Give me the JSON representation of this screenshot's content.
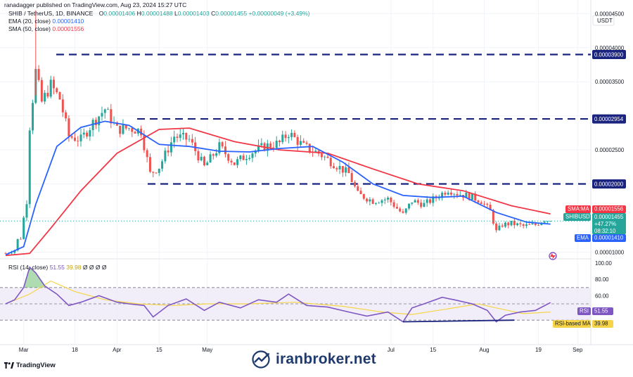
{
  "header": {
    "published": "ranadagger published on TradingView.com, Aug 23, 2024 15:27 UTC",
    "symbol": "SHIB / TetherUS, 1D, BINANCE",
    "ohlc": {
      "o_label": "O",
      "o": "0.00001406",
      "h_label": "H",
      "h": "0.00001488",
      "l_label": "L",
      "l": "0.00001403",
      "c_label": "C",
      "c": "0.00001455",
      "change": "+0.00000049 (+3.49%)"
    },
    "ema": {
      "label": "EMA (20, close)",
      "value": "0.00001410"
    },
    "sma": {
      "label": "SMA (50, close)",
      "value": "0.00001556"
    }
  },
  "currency": "USDT",
  "colors": {
    "up": "#26a69a",
    "down": "#ef5350",
    "ema": "#2962ff",
    "sma": "#f23645",
    "rsi": "#7e57c2",
    "rsi_ma": "#f5d547",
    "level_line": "#1a237e",
    "divergence": "#1a237e",
    "watermark": "#1f3b6e"
  },
  "price_axis": {
    "ticks": [
      "0.00004500",
      "0.00004000",
      "0.00003500",
      "0.00002500",
      "0.00001000"
    ]
  },
  "level_labels": [
    "0.00003900",
    "0.00002954",
    "0.00002000"
  ],
  "price_badges": {
    "sma": {
      "name": "SMA:MA",
      "value": "0.00001556"
    },
    "symbol": {
      "name": "SHIBUSDT",
      "value": "0.00001455",
      "change": "+47.27%",
      "countdown": "08:32:10"
    },
    "ema": {
      "name": "EMA",
      "value": "0.00001410"
    }
  },
  "rsi": {
    "label": "RSI (14, close)",
    "value_header": "51.55",
    "ma_header": "39.98",
    "extra": "Ø Ø Ø Ø",
    "axis_ticks": [
      "100.00",
      "80.00",
      "60.00"
    ],
    "badge_rsi": {
      "name": "RSI",
      "value": "51.55"
    },
    "badge_ma": {
      "name": "RSI-based MA",
      "value": "39.98"
    }
  },
  "time_axis": [
    "Mar",
    "18",
    "Apr",
    "15",
    "May",
    "Jul",
    "15",
    "Aug",
    "19",
    "Sep"
  ],
  "brand": {
    "tradingview": "TradingView",
    "watermark": "iranbroker.net"
  },
  "chart_data": {
    "type": "candlestick",
    "title": "SHIB / TetherUS, 1D, BINANCE",
    "y_unit": "USDT",
    "ylim": [
      9e-06,
      4.7e-05
    ],
    "date_range": [
      "2024-02-24",
      "2024-08-23"
    ],
    "levels": [
      3.9e-05,
      2.954e-05,
      2e-05
    ],
    "close_path": [
      [
        "2024-02-24",
        9.8e-06
      ],
      [
        "2024-02-27",
        1.03e-05
      ],
      [
        "2024-02-28",
        1.18e-05
      ],
      [
        "2024-02-29",
        1.21e-05
      ],
      [
        "2024-03-01",
        1.5e-05
      ],
      [
        "2024-03-02",
        1.75e-05
      ],
      [
        "2024-03-03",
        2.85e-05
      ],
      [
        "2024-03-05",
        3.65e-05
      ],
      [
        "2024-03-07",
        3.2e-05
      ],
      [
        "2024-03-10",
        3.45e-05
      ],
      [
        "2024-03-13",
        3.25e-05
      ],
      [
        "2024-03-16",
        2.7e-05
      ],
      [
        "2024-03-20",
        2.65e-05
      ],
      [
        "2024-03-24",
        2.9e-05
      ],
      [
        "2024-03-28",
        3.1e-05
      ],
      [
        "2024-04-01",
        2.8e-05
      ],
      [
        "2024-04-05",
        2.82e-05
      ],
      [
        "2024-04-09",
        2.78e-05
      ],
      [
        "2024-04-12",
        2.15e-05
      ],
      [
        "2024-04-15",
        2.25e-05
      ],
      [
        "2024-04-20",
        2.7e-05
      ],
      [
        "2024-04-25",
        2.65e-05
      ],
      [
        "2024-04-30",
        2.25e-05
      ],
      [
        "2024-05-05",
        2.55e-05
      ],
      [
        "2024-05-10",
        2.3e-05
      ],
      [
        "2024-05-15",
        2.45e-05
      ],
      [
        "2024-05-20",
        2.55e-05
      ],
      [
        "2024-05-25",
        2.6e-05
      ],
      [
        "2024-05-28",
        2.75e-05
      ],
      [
        "2024-06-02",
        2.55e-05
      ],
      [
        "2024-06-07",
        2.45e-05
      ],
      [
        "2024-06-12",
        2.3e-05
      ],
      [
        "2024-06-17",
        2.15e-05
      ],
      [
        "2024-06-20",
        1.85e-05
      ],
      [
        "2024-06-25",
        1.75e-05
      ],
      [
        "2024-06-30",
        1.78e-05
      ],
      [
        "2024-07-05",
        1.55e-05
      ],
      [
        "2024-07-08",
        1.75e-05
      ],
      [
        "2024-07-12",
        1.7e-05
      ],
      [
        "2024-07-16",
        1.8e-05
      ],
      [
        "2024-07-20",
        1.92e-05
      ],
      [
        "2024-07-23",
        1.86e-05
      ],
      [
        "2024-07-27",
        1.82e-05
      ],
      [
        "2024-07-31",
        1.75e-05
      ],
      [
        "2024-08-03",
        1.6e-05
      ],
      [
        "2024-08-05",
        1.3e-05
      ],
      [
        "2024-08-07",
        1.4e-05
      ],
      [
        "2024-08-10",
        1.42e-05
      ],
      [
        "2024-08-14",
        1.38e-05
      ],
      [
        "2024-08-18",
        1.4e-05
      ],
      [
        "2024-08-21",
        1.48e-05
      ],
      [
        "2024-08-23",
        1.455e-05
      ]
    ],
    "ema20": [
      [
        "2024-02-24",
        9.6e-06
      ],
      [
        "2024-03-01",
        1.08e-05
      ],
      [
        "2024-03-05",
        1.7e-05
      ],
      [
        "2024-03-12",
        2.55e-05
      ],
      [
        "2024-03-20",
        2.83e-05
      ],
      [
        "2024-03-28",
        2.92e-05
      ],
      [
        "2024-04-05",
        2.86e-05
      ],
      [
        "2024-04-15",
        2.58e-05
      ],
      [
        "2024-04-25",
        2.55e-05
      ],
      [
        "2024-05-05",
        2.48e-05
      ],
      [
        "2024-05-15",
        2.47e-05
      ],
      [
        "2024-05-25",
        2.52e-05
      ],
      [
        "2024-06-05",
        2.55e-05
      ],
      [
        "2024-06-15",
        2.32e-05
      ],
      [
        "2024-06-25",
        2e-05
      ],
      [
        "2024-07-05",
        1.83e-05
      ],
      [
        "2024-07-15",
        1.8e-05
      ],
      [
        "2024-07-25",
        1.82e-05
      ],
      [
        "2024-08-05",
        1.58e-05
      ],
      [
        "2024-08-15",
        1.44e-05
      ],
      [
        "2024-08-23",
        1.41e-05
      ]
    ],
    "sma50": [
      [
        "2024-02-24",
        9.5e-06
      ],
      [
        "2024-03-03",
        9.8e-06
      ],
      [
        "2024-03-10",
        1.35e-05
      ],
      [
        "2024-03-20",
        1.9e-05
      ],
      [
        "2024-04-01",
        2.45e-05
      ],
      [
        "2024-04-15",
        2.8e-05
      ],
      [
        "2024-04-25",
        2.82e-05
      ],
      [
        "2024-05-10",
        2.62e-05
      ],
      [
        "2024-05-25",
        2.5e-05
      ],
      [
        "2024-06-10",
        2.45e-05
      ],
      [
        "2024-06-25",
        2.22e-05
      ],
      [
        "2024-07-10",
        2e-05
      ],
      [
        "2024-07-25",
        1.9e-05
      ],
      [
        "2024-08-10",
        1.68e-05
      ],
      [
        "2024-08-23",
        1.56e-05
      ]
    ],
    "rsi_range": [
      0,
      100
    ],
    "rsi_band": [
      30,
      70
    ],
    "rsi_values": [
      [
        "2024-02-24",
        50
      ],
      [
        "2024-02-27",
        55
      ],
      [
        "2024-03-01",
        70
      ],
      [
        "2024-03-03",
        95
      ],
      [
        "2024-03-05",
        88
      ],
      [
        "2024-03-08",
        72
      ],
      [
        "2024-03-12",
        62
      ],
      [
        "2024-03-16",
        48
      ],
      [
        "2024-03-20",
        52
      ],
      [
        "2024-03-26",
        60
      ],
      [
        "2024-04-01",
        52
      ],
      [
        "2024-04-05",
        50
      ],
      [
        "2024-04-10",
        48
      ],
      [
        "2024-04-13",
        34
      ],
      [
        "2024-04-18",
        48
      ],
      [
        "2024-04-24",
        56
      ],
      [
        "2024-04-30",
        42
      ],
      [
        "2024-05-05",
        52
      ],
      [
        "2024-05-12",
        45
      ],
      [
        "2024-05-18",
        55
      ],
      [
        "2024-05-24",
        52
      ],
      [
        "2024-05-28",
        62
      ],
      [
        "2024-06-03",
        48
      ],
      [
        "2024-06-10",
        46
      ],
      [
        "2024-06-17",
        40
      ],
      [
        "2024-06-23",
        35
      ],
      [
        "2024-06-30",
        40
      ],
      [
        "2024-07-05",
        28
      ],
      [
        "2024-07-08",
        45
      ],
      [
        "2024-07-12",
        50
      ],
      [
        "2024-07-18",
        58
      ],
      [
        "2024-07-22",
        55
      ],
      [
        "2024-07-28",
        50
      ],
      [
        "2024-08-02",
        42
      ],
      [
        "2024-08-05",
        28
      ],
      [
        "2024-08-08",
        36
      ],
      [
        "2024-08-13",
        40
      ],
      [
        "2024-08-18",
        42
      ],
      [
        "2024-08-23",
        51.55
      ]
    ],
    "rsi_ma_values": [
      [
        "2024-02-24",
        50
      ],
      [
        "2024-03-03",
        62
      ],
      [
        "2024-03-10",
        78
      ],
      [
        "2024-03-18",
        65
      ],
      [
        "2024-03-28",
        55
      ],
      [
        "2024-04-08",
        50
      ],
      [
        "2024-04-20",
        48
      ],
      [
        "2024-05-01",
        50
      ],
      [
        "2024-05-15",
        50
      ],
      [
        "2024-05-30",
        52
      ],
      [
        "2024-06-15",
        47
      ],
      [
        "2024-06-28",
        40
      ],
      [
        "2024-07-08",
        37
      ],
      [
        "2024-07-20",
        44
      ],
      [
        "2024-07-30",
        50
      ],
      [
        "2024-08-05",
        45
      ],
      [
        "2024-08-14",
        38
      ],
      [
        "2024-08-23",
        39.98
      ]
    ],
    "divergence_line": [
      [
        "2024-07-05",
        28
      ],
      [
        "2024-08-11",
        30
      ]
    ]
  }
}
